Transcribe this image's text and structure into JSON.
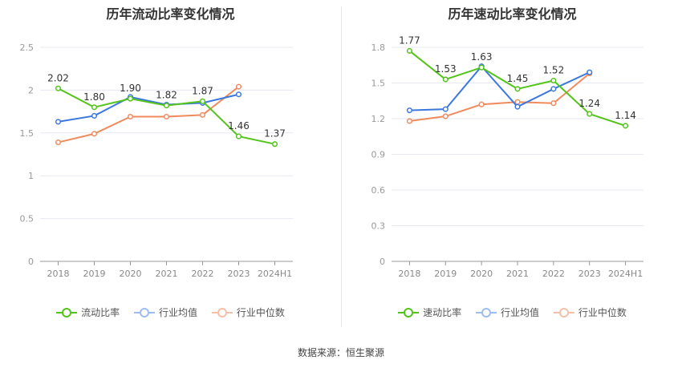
{
  "source_label": "数据来源：恒生聚源",
  "colors": {
    "primary": "#52c41a",
    "average": "#3a78e0",
    "median": "#f08a5d",
    "grid": "#e6e9f0",
    "axis": "#999999"
  },
  "chart_data": [
    {
      "type": "line",
      "title": "历年流动比率变化情况",
      "categories": [
        "2018",
        "2019",
        "2020",
        "2021",
        "2022",
        "2023",
        "2024H1"
      ],
      "ylim": [
        0,
        2.5
      ],
      "yticks": [
        "0",
        "0.5",
        "1",
        "1.5",
        "2",
        "2.5"
      ],
      "grid": true,
      "legend": "bottom-center",
      "series": [
        {
          "name": "流动比率",
          "values": [
            2.02,
            1.8,
            1.9,
            1.82,
            1.87,
            1.46,
            1.37
          ],
          "labels": [
            "2.02",
            "1.80",
            "1.90",
            "1.82",
            "1.87",
            "1.46",
            "1.37"
          ]
        },
        {
          "name": "行业均值",
          "values": [
            1.63,
            1.7,
            1.92,
            1.83,
            1.85,
            1.95,
            null
          ]
        },
        {
          "name": "行业中位数",
          "values": [
            1.39,
            1.49,
            1.69,
            1.69,
            1.71,
            2.04,
            null
          ]
        }
      ]
    },
    {
      "type": "line",
      "title": "历年速动比率变化情况",
      "categories": [
        "2018",
        "2019",
        "2020",
        "2021",
        "2022",
        "2023",
        "2024H1"
      ],
      "ylim": [
        0,
        1.8
      ],
      "yticks": [
        "0",
        "0.3",
        "0.6",
        "0.9",
        "1.2",
        "1.5",
        "1.8"
      ],
      "grid": true,
      "legend": "bottom-center",
      "series": [
        {
          "name": "速动比率",
          "values": [
            1.77,
            1.53,
            1.63,
            1.45,
            1.52,
            1.24,
            1.14
          ],
          "labels": [
            "1.77",
            "1.53",
            "1.63",
            "1.45",
            "1.52",
            "1.24",
            "1.14"
          ]
        },
        {
          "name": "行业均值",
          "values": [
            1.27,
            1.28,
            1.64,
            1.3,
            1.45,
            1.59,
            null
          ]
        },
        {
          "name": "行业中位数",
          "values": [
            1.18,
            1.22,
            1.32,
            1.34,
            1.33,
            1.58,
            null
          ]
        }
      ]
    }
  ]
}
